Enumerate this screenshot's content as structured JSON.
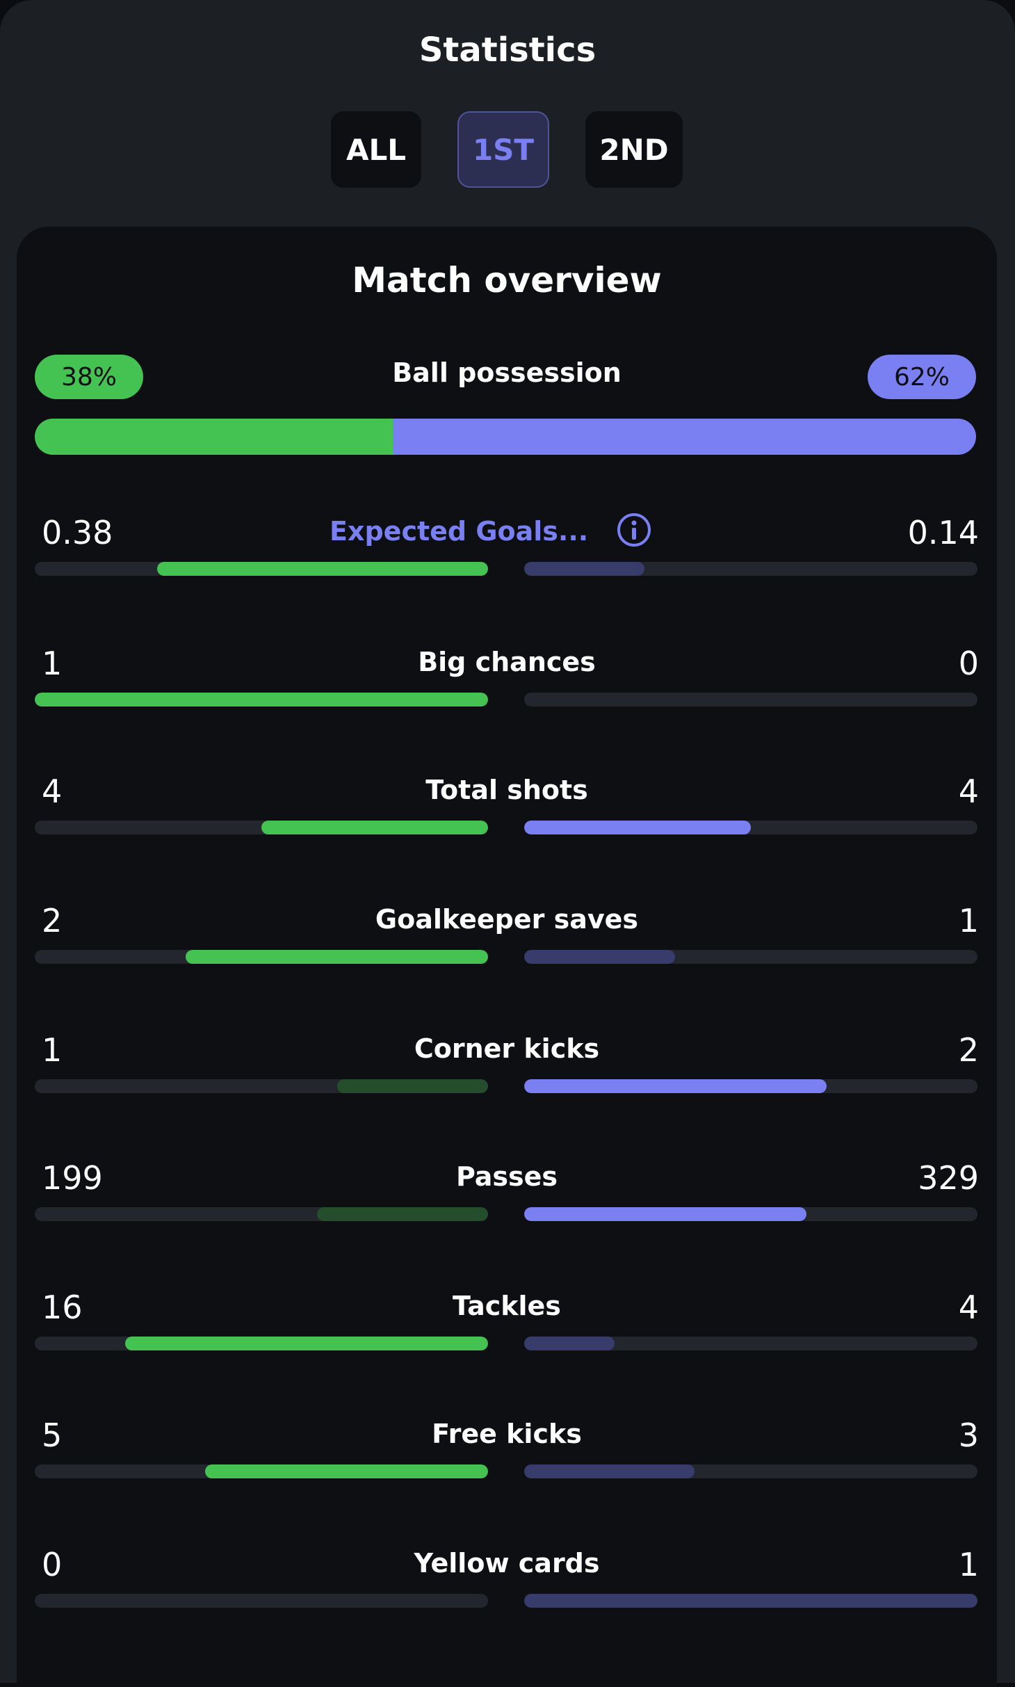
{
  "header": {
    "title": "Statistics"
  },
  "tabs": [
    {
      "label": "ALL",
      "active": false
    },
    {
      "label": "1ST",
      "active": true
    },
    {
      "label": "2ND",
      "active": false
    }
  ],
  "overview": {
    "title": "Match overview",
    "possession": {
      "label": "Ball possession",
      "home_text": "38%",
      "away_text": "62%",
      "home_share": 0.38
    }
  },
  "colors": {
    "home_strong": "#45c352",
    "home_weak": "#244d2b",
    "away_strong": "#7a7ff2",
    "away_weak": "#383c6a",
    "track": "#23262d",
    "link": "#7a7ff2"
  },
  "stats": [
    {
      "label": "Expected Goals...",
      "home": "0.38",
      "away": "0.14",
      "home_fill": 0.73,
      "away_fill": 0.265,
      "home_strong": true,
      "away_strong": false,
      "link": true,
      "icon": "info-icon"
    },
    {
      "label": "Big chances",
      "home": "1",
      "away": "0",
      "home_fill": 1.0,
      "away_fill": 0.0,
      "home_strong": true,
      "away_strong": false
    },
    {
      "label": "Total shots",
      "home": "4",
      "away": "4",
      "home_fill": 0.5,
      "away_fill": 0.5,
      "home_strong": true,
      "away_strong": true
    },
    {
      "label": "Goalkeeper saves",
      "home": "2",
      "away": "1",
      "home_fill": 0.667,
      "away_fill": 0.333,
      "home_strong": true,
      "away_strong": false
    },
    {
      "label": "Corner kicks",
      "home": "1",
      "away": "2",
      "home_fill": 0.333,
      "away_fill": 0.667,
      "home_strong": false,
      "away_strong": true
    },
    {
      "label": "Passes",
      "home": "199",
      "away": "329",
      "home_fill": 0.377,
      "away_fill": 0.623,
      "home_strong": false,
      "away_strong": true
    },
    {
      "label": "Tackles",
      "home": "16",
      "away": "4",
      "home_fill": 0.8,
      "away_fill": 0.2,
      "home_strong": true,
      "away_strong": false
    },
    {
      "label": "Free kicks",
      "home": "5",
      "away": "3",
      "home_fill": 0.625,
      "away_fill": 0.375,
      "home_strong": true,
      "away_strong": false
    },
    {
      "label": "Yellow cards",
      "home": "0",
      "away": "1",
      "home_fill": 0.0,
      "away_fill": 1.0,
      "home_strong": false,
      "away_strong": false
    }
  ]
}
